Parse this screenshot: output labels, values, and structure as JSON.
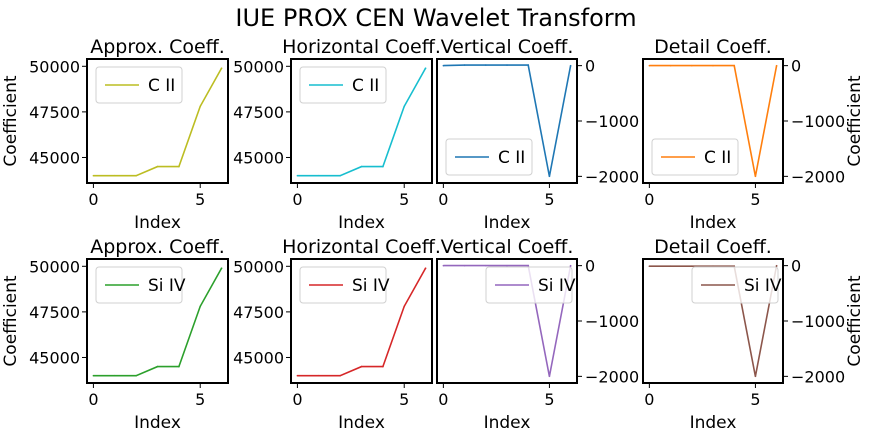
{
  "figure_title": "IUE PROX CEN Wavelet Transform",
  "chart_data": [
    {
      "type": "line",
      "title": "Approx. Coeff.",
      "xlabel": "Index",
      "ylabel": "Coefficient",
      "x": [
        0,
        1,
        2,
        3,
        4,
        5,
        6
      ],
      "xlim": [
        -0.3,
        6.3
      ],
      "ylim": [
        43600,
        50400
      ],
      "xticks": [
        0,
        5
      ],
      "xtick_labels": [
        "0",
        "5"
      ],
      "yticks": [
        45000,
        47500,
        50000
      ],
      "ytick_labels": [
        "45000",
        "47500",
        "50000"
      ],
      "y_axis_side": "left",
      "legend_position": "upper left",
      "series": [
        {
          "name": "C II",
          "color": "#bcbd22",
          "values": [
            44000,
            44000,
            44000,
            44500,
            44500,
            47800,
            49900
          ]
        }
      ]
    },
    {
      "type": "line",
      "title": "Horizontal Coeff.",
      "xlabel": "Index",
      "ylabel": "",
      "x": [
        0,
        1,
        2,
        3,
        4,
        5,
        6
      ],
      "xlim": [
        -0.3,
        6.3
      ],
      "ylim": [
        43600,
        50400
      ],
      "xticks": [
        0,
        5
      ],
      "xtick_labels": [
        "0",
        "5"
      ],
      "yticks": [
        45000,
        47500,
        50000
      ],
      "ytick_labels": [
        "45000",
        "47500",
        "50000"
      ],
      "y_axis_side": "left",
      "legend_position": "upper left",
      "series": [
        {
          "name": "C II",
          "color": "#17becf",
          "values": [
            44000,
            44000,
            44000,
            44500,
            44500,
            47800,
            49900
          ]
        }
      ]
    },
    {
      "type": "line",
      "title": "Vertical Coeff.",
      "xlabel": "Index",
      "ylabel": "",
      "x": [
        0,
        1,
        2,
        3,
        4,
        5,
        6
      ],
      "xlim": [
        -0.3,
        6.3
      ],
      "ylim": [
        -2120,
        120
      ],
      "xticks": [
        0,
        5
      ],
      "xtick_labels": [
        "0",
        "5"
      ],
      "yticks": [
        -2000,
        -1000,
        0
      ],
      "ytick_labels": [
        "−2000",
        "−1000",
        "0"
      ],
      "y_axis_side": "right",
      "legend_position": "lower left",
      "series": [
        {
          "name": "C II",
          "color": "#1f77b4",
          "values": [
            0,
            10,
            10,
            10,
            10,
            -2000,
            0
          ]
        }
      ]
    },
    {
      "type": "line",
      "title": "Detail Coeff.",
      "xlabel": "Index",
      "ylabel": "Coefficient",
      "x": [
        0,
        1,
        2,
        3,
        4,
        5,
        6
      ],
      "xlim": [
        -0.3,
        6.3
      ],
      "ylim": [
        -2120,
        120
      ],
      "xticks": [
        0,
        5
      ],
      "xtick_labels": [
        "0",
        "5"
      ],
      "yticks": [
        -2000,
        -1000,
        0
      ],
      "ytick_labels": [
        "−2000",
        "−1000",
        "0"
      ],
      "y_axis_side": "right",
      "legend_position": "lower left",
      "series": [
        {
          "name": "C II",
          "color": "#ff7f0e",
          "values": [
            0,
            0,
            0,
            0,
            0,
            -2000,
            0
          ]
        }
      ]
    },
    {
      "type": "line",
      "title": "Approx. Coeff.",
      "xlabel": "Index",
      "ylabel": "Coefficient",
      "x": [
        0,
        1,
        2,
        3,
        4,
        5,
        6
      ],
      "xlim": [
        -0.3,
        6.3
      ],
      "ylim": [
        43600,
        50400
      ],
      "xticks": [
        0,
        5
      ],
      "xtick_labels": [
        "0",
        "5"
      ],
      "yticks": [
        45000,
        47500,
        50000
      ],
      "ytick_labels": [
        "45000",
        "47500",
        "50000"
      ],
      "y_axis_side": "left",
      "legend_position": "upper left",
      "series": [
        {
          "name": "Si IV",
          "color": "#2ca02c",
          "values": [
            44000,
            44000,
            44000,
            44500,
            44500,
            47800,
            49900
          ]
        }
      ]
    },
    {
      "type": "line",
      "title": "Horizontal Coeff.",
      "xlabel": "Index",
      "ylabel": "",
      "x": [
        0,
        1,
        2,
        3,
        4,
        5,
        6
      ],
      "xlim": [
        -0.3,
        6.3
      ],
      "ylim": [
        43600,
        50400
      ],
      "xticks": [
        0,
        5
      ],
      "xtick_labels": [
        "0",
        "5"
      ],
      "yticks": [
        45000,
        47500,
        50000
      ],
      "ytick_labels": [
        "45000",
        "47500",
        "50000"
      ],
      "y_axis_side": "left",
      "legend_position": "upper left",
      "series": [
        {
          "name": "Si IV",
          "color": "#d62728",
          "values": [
            44000,
            44000,
            44000,
            44500,
            44500,
            47800,
            49900
          ]
        }
      ]
    },
    {
      "type": "line",
      "title": "Vertical Coeff.",
      "xlabel": "Index",
      "ylabel": "",
      "x": [
        0,
        1,
        2,
        3,
        4,
        5,
        6
      ],
      "xlim": [
        -0.3,
        6.3
      ],
      "ylim": [
        -2120,
        120
      ],
      "xticks": [
        0,
        5
      ],
      "xtick_labels": [
        "0",
        "5"
      ],
      "yticks": [
        -2000,
        -1000,
        0
      ],
      "ytick_labels": [
        "−2000",
        "−1000",
        "0"
      ],
      "y_axis_side": "right",
      "legend_position": "upper right",
      "series": [
        {
          "name": "Si IV",
          "color": "#9467bd",
          "values": [
            0,
            0,
            0,
            0,
            0,
            -2000,
            0
          ]
        }
      ]
    },
    {
      "type": "line",
      "title": "Detail Coeff.",
      "xlabel": "Index",
      "ylabel": "Coefficient",
      "x": [
        0,
        1,
        2,
        3,
        4,
        5,
        6
      ],
      "xlim": [
        -0.3,
        6.3
      ],
      "ylim": [
        -2120,
        120
      ],
      "xticks": [
        0,
        5
      ],
      "xtick_labels": [
        "0",
        "5"
      ],
      "yticks": [
        -2000,
        -1000,
        0
      ],
      "ytick_labels": [
        "−2000",
        "−1000",
        "0"
      ],
      "y_axis_side": "right",
      "legend_position": "upper right",
      "series": [
        {
          "name": "Si IV",
          "color": "#8c564b",
          "values": [
            -10,
            -10,
            -10,
            -10,
            -10,
            -2000,
            0
          ]
        }
      ]
    }
  ]
}
